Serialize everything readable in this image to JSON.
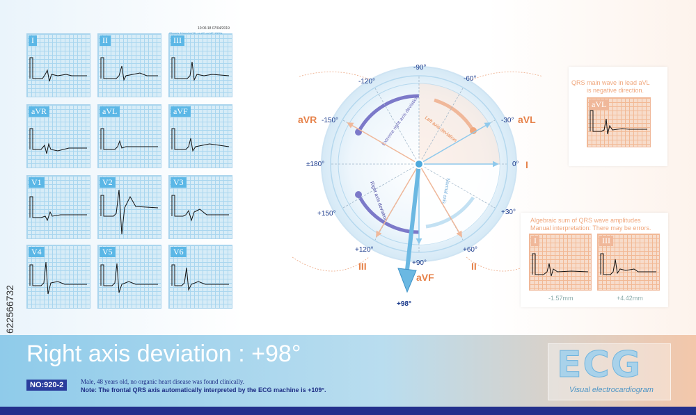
{
  "timestamp": "10:06:18 07/04/2019",
  "settings": "25mm/s 10mm/mV BL on AC on MF 100Hz",
  "leads": [
    "I",
    "II",
    "III",
    "aVR",
    "aVL",
    "aVF",
    "V1",
    "V2",
    "V3",
    "V4",
    "V5",
    "V6"
  ],
  "axis": {
    "angles": [
      "-90°",
      "-120°",
      "-60°",
      "-150°",
      "-30°",
      "±180°",
      "0°",
      "+150°",
      "+30°",
      "+120°",
      "+60°",
      "+90°"
    ],
    "lead_names": {
      "avr": "aVR",
      "avl": "aVL",
      "i": "I",
      "iii": "III",
      "ii": "II",
      "avf": "aVF"
    },
    "result_label": "+98°",
    "result_value": 98,
    "regions": [
      "Extreme right axis deviation",
      "Left axis deviation",
      "Right axis deviation",
      "Normal axis"
    ]
  },
  "avl_note": {
    "line1": "QRS main wave in lead aVL",
    "line2": "is negative direction.",
    "lead": "aVL"
  },
  "sum_note": {
    "line1": "Algebraic sum of QRS wave amplitudes",
    "line2": "Manual interpretation: There may be errors.",
    "lead_i": "I",
    "lead_iii": "III",
    "value_i": "-1.57mm",
    "value_iii": "+4.42mm"
  },
  "footer": {
    "title": "Right axis deviation : +98°",
    "number": "NO:920-2",
    "line1": "Male, 48 years old, no organic heart disease was found clinically.",
    "line2": "Note: The frontal QRS axis automatically interpreted by the ECG machine is +109°."
  },
  "logo": {
    "big": "ECG",
    "small": "Visual electrocardiogram"
  },
  "watermark": "622566732",
  "colors": {
    "blue": "#5bb7e6",
    "orange": "#e6824a",
    "purple": "#7c79c9",
    "navy": "#23308c"
  }
}
